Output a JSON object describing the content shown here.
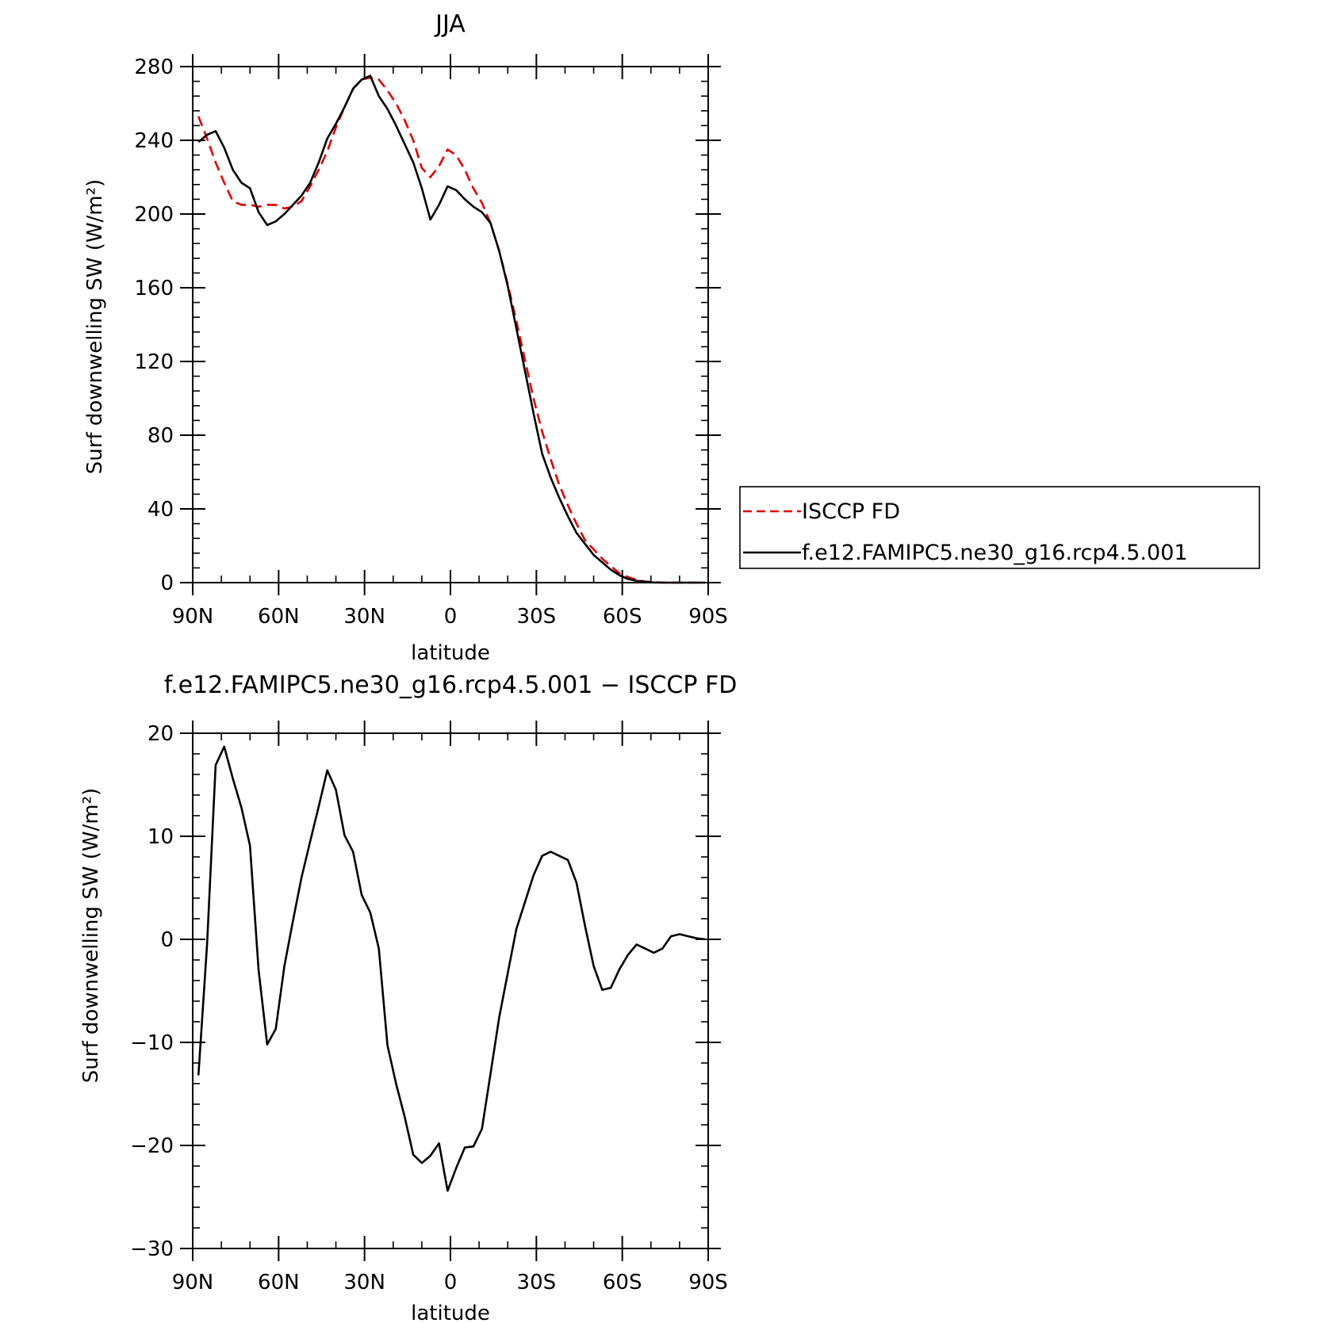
{
  "chart_data": [
    {
      "type": "line",
      "title": "JJA",
      "xlabel": "latitude",
      "ylabel": "Surf downwelling SW (W/m²)",
      "xlim": [
        90,
        -90
      ],
      "ylim": [
        0,
        280
      ],
      "xticks": [
        90,
        60,
        30,
        0,
        -30,
        -60,
        -90
      ],
      "xtick_labels": [
        "90N",
        "60N",
        "30N",
        "0",
        "30S",
        "60S",
        "90S"
      ],
      "yticks": [
        0,
        40,
        80,
        120,
        160,
        200,
        240,
        280
      ],
      "ytick_labels": [
        "0",
        "40",
        "80",
        "120",
        "160",
        "200",
        "240",
        "280"
      ],
      "legend_position": "right",
      "series": [
        {
          "name": "ISCCP FD",
          "color": "#e00000",
          "dash": "dashed",
          "x": [
            88,
            85,
            82,
            79,
            76,
            73,
            70,
            67,
            64,
            61,
            58,
            55,
            52,
            49,
            46,
            43,
            40,
            37,
            34,
            31,
            28,
            25,
            22,
            19,
            16,
            13,
            10,
            7,
            4,
            1,
            -2,
            -5,
            -8,
            -11,
            -14,
            -17,
            -20,
            -23,
            -26,
            -29,
            -32,
            -35,
            -38,
            -41,
            -44,
            -47,
            -50,
            -53,
            -56,
            -59,
            -62,
            -65,
            -68,
            -71,
            -74,
            -77,
            -80,
            -83,
            -86,
            -89
          ],
          "values": [
            253,
            241,
            228,
            217,
            207,
            205,
            205,
            204,
            205,
            205,
            203,
            204,
            207,
            215,
            224,
            234,
            247,
            258,
            268,
            273,
            274,
            273,
            267,
            260,
            251,
            240,
            225,
            220,
            226,
            235,
            232,
            224,
            214,
            206,
            195,
            180,
            162,
            142,
            121,
            100,
            82,
            67,
            53,
            42,
            32,
            23,
            18,
            13,
            9,
            5,
            3,
            1.5,
            0.6,
            0.2,
            0.1,
            0,
            0,
            0,
            0,
            0
          ]
        },
        {
          "name": "f.e12.FAMIPC5.ne30_g16.rcp4.5.001",
          "color": "#000000",
          "dash": "solid",
          "x": [
            88,
            85,
            82,
            79,
            76,
            73,
            70,
            67,
            64,
            61,
            58,
            55,
            52,
            49,
            46,
            43,
            40,
            37,
            34,
            31,
            28,
            25,
            22,
            19,
            16,
            13,
            10,
            7,
            4,
            1,
            -2,
            -5,
            -8,
            -11,
            -14,
            -17,
            -20,
            -23,
            -26,
            -29,
            -32,
            -35,
            -38,
            -41,
            -44,
            -47,
            -50,
            -53,
            -56,
            -59,
            -62,
            -65,
            -68,
            -71,
            -74,
            -77,
            -80,
            -83,
            -86,
            -89
          ],
          "values": [
            239,
            243,
            245,
            236,
            224,
            217,
            214,
            201,
            194,
            196,
            200,
            205,
            210,
            217,
            228,
            241,
            249,
            258,
            268,
            273,
            275,
            264,
            257,
            248,
            238,
            228,
            214,
            197,
            205,
            215,
            213,
            208,
            204,
            201,
            195,
            180,
            161,
            138,
            115,
            92,
            70,
            57,
            46,
            36,
            27,
            21,
            15,
            11,
            7,
            4,
            2,
            1,
            0.4,
            0.1,
            0,
            0,
            0,
            0,
            0,
            0
          ]
        }
      ]
    },
    {
      "type": "line",
      "title": "f.e12.FAMIPC5.ne30_g16.rcp4.5.001 − ISCCP FD",
      "xlabel": "latitude",
      "ylabel": "Surf downwelling SW (W/m²)",
      "xlim": [
        90,
        -90
      ],
      "ylim": [
        -30,
        20
      ],
      "xticks": [
        90,
        60,
        30,
        0,
        -30,
        -60,
        -90
      ],
      "xtick_labels": [
        "90N",
        "60N",
        "30N",
        "0",
        "30S",
        "60S",
        "90S"
      ],
      "yticks": [
        -30,
        -20,
        -10,
        0,
        10,
        20
      ],
      "ytick_labels": [
        "−30",
        "−20",
        "−10",
        "0",
        "10",
        "20"
      ],
      "series": [
        {
          "color": "#000000",
          "dash": "solid",
          "x": [
            88,
            85,
            82,
            79,
            76,
            73,
            70,
            67,
            64,
            61,
            58,
            55,
            52,
            49,
            46,
            43,
            40,
            37,
            34,
            31,
            28,
            25,
            22,
            19,
            16,
            13,
            10,
            7,
            4,
            1,
            -2,
            -5,
            -8,
            -11,
            -14,
            -17,
            -20,
            -23,
            -26,
            -29,
            -32,
            -35,
            -38,
            -41,
            -44,
            -47,
            -50,
            -53,
            -56,
            -59,
            -62,
            -65,
            -68,
            -71,
            -74,
            -77,
            -80,
            -83,
            -86,
            -89
          ],
          "values": [
            -13.2,
            -0.5,
            16.9,
            18.7,
            15.6,
            12.8,
            9.1,
            -3,
            -10.2,
            -8.7,
            -2.6,
            1.8,
            6,
            9.5,
            12.9,
            16.4,
            14.5,
            10.1,
            8.5,
            4.3,
            2.6,
            -0.9,
            -10.3,
            -14,
            -17.2,
            -20.9,
            -21.7,
            -21,
            -19.8,
            -24.4,
            -22.2,
            -20.2,
            -20.1,
            -18.4,
            -13,
            -7.6,
            -3.3,
            1,
            3.6,
            6.2,
            8.1,
            8.5,
            8.1,
            7.7,
            5.5,
            1.3,
            -2.6,
            -4.9,
            -4.7,
            -2.9,
            -1.5,
            -0.5,
            -0.9,
            -1.3,
            -0.9,
            0.3,
            0.5,
            0.3,
            0.1,
            0
          ]
        }
      ]
    }
  ]
}
